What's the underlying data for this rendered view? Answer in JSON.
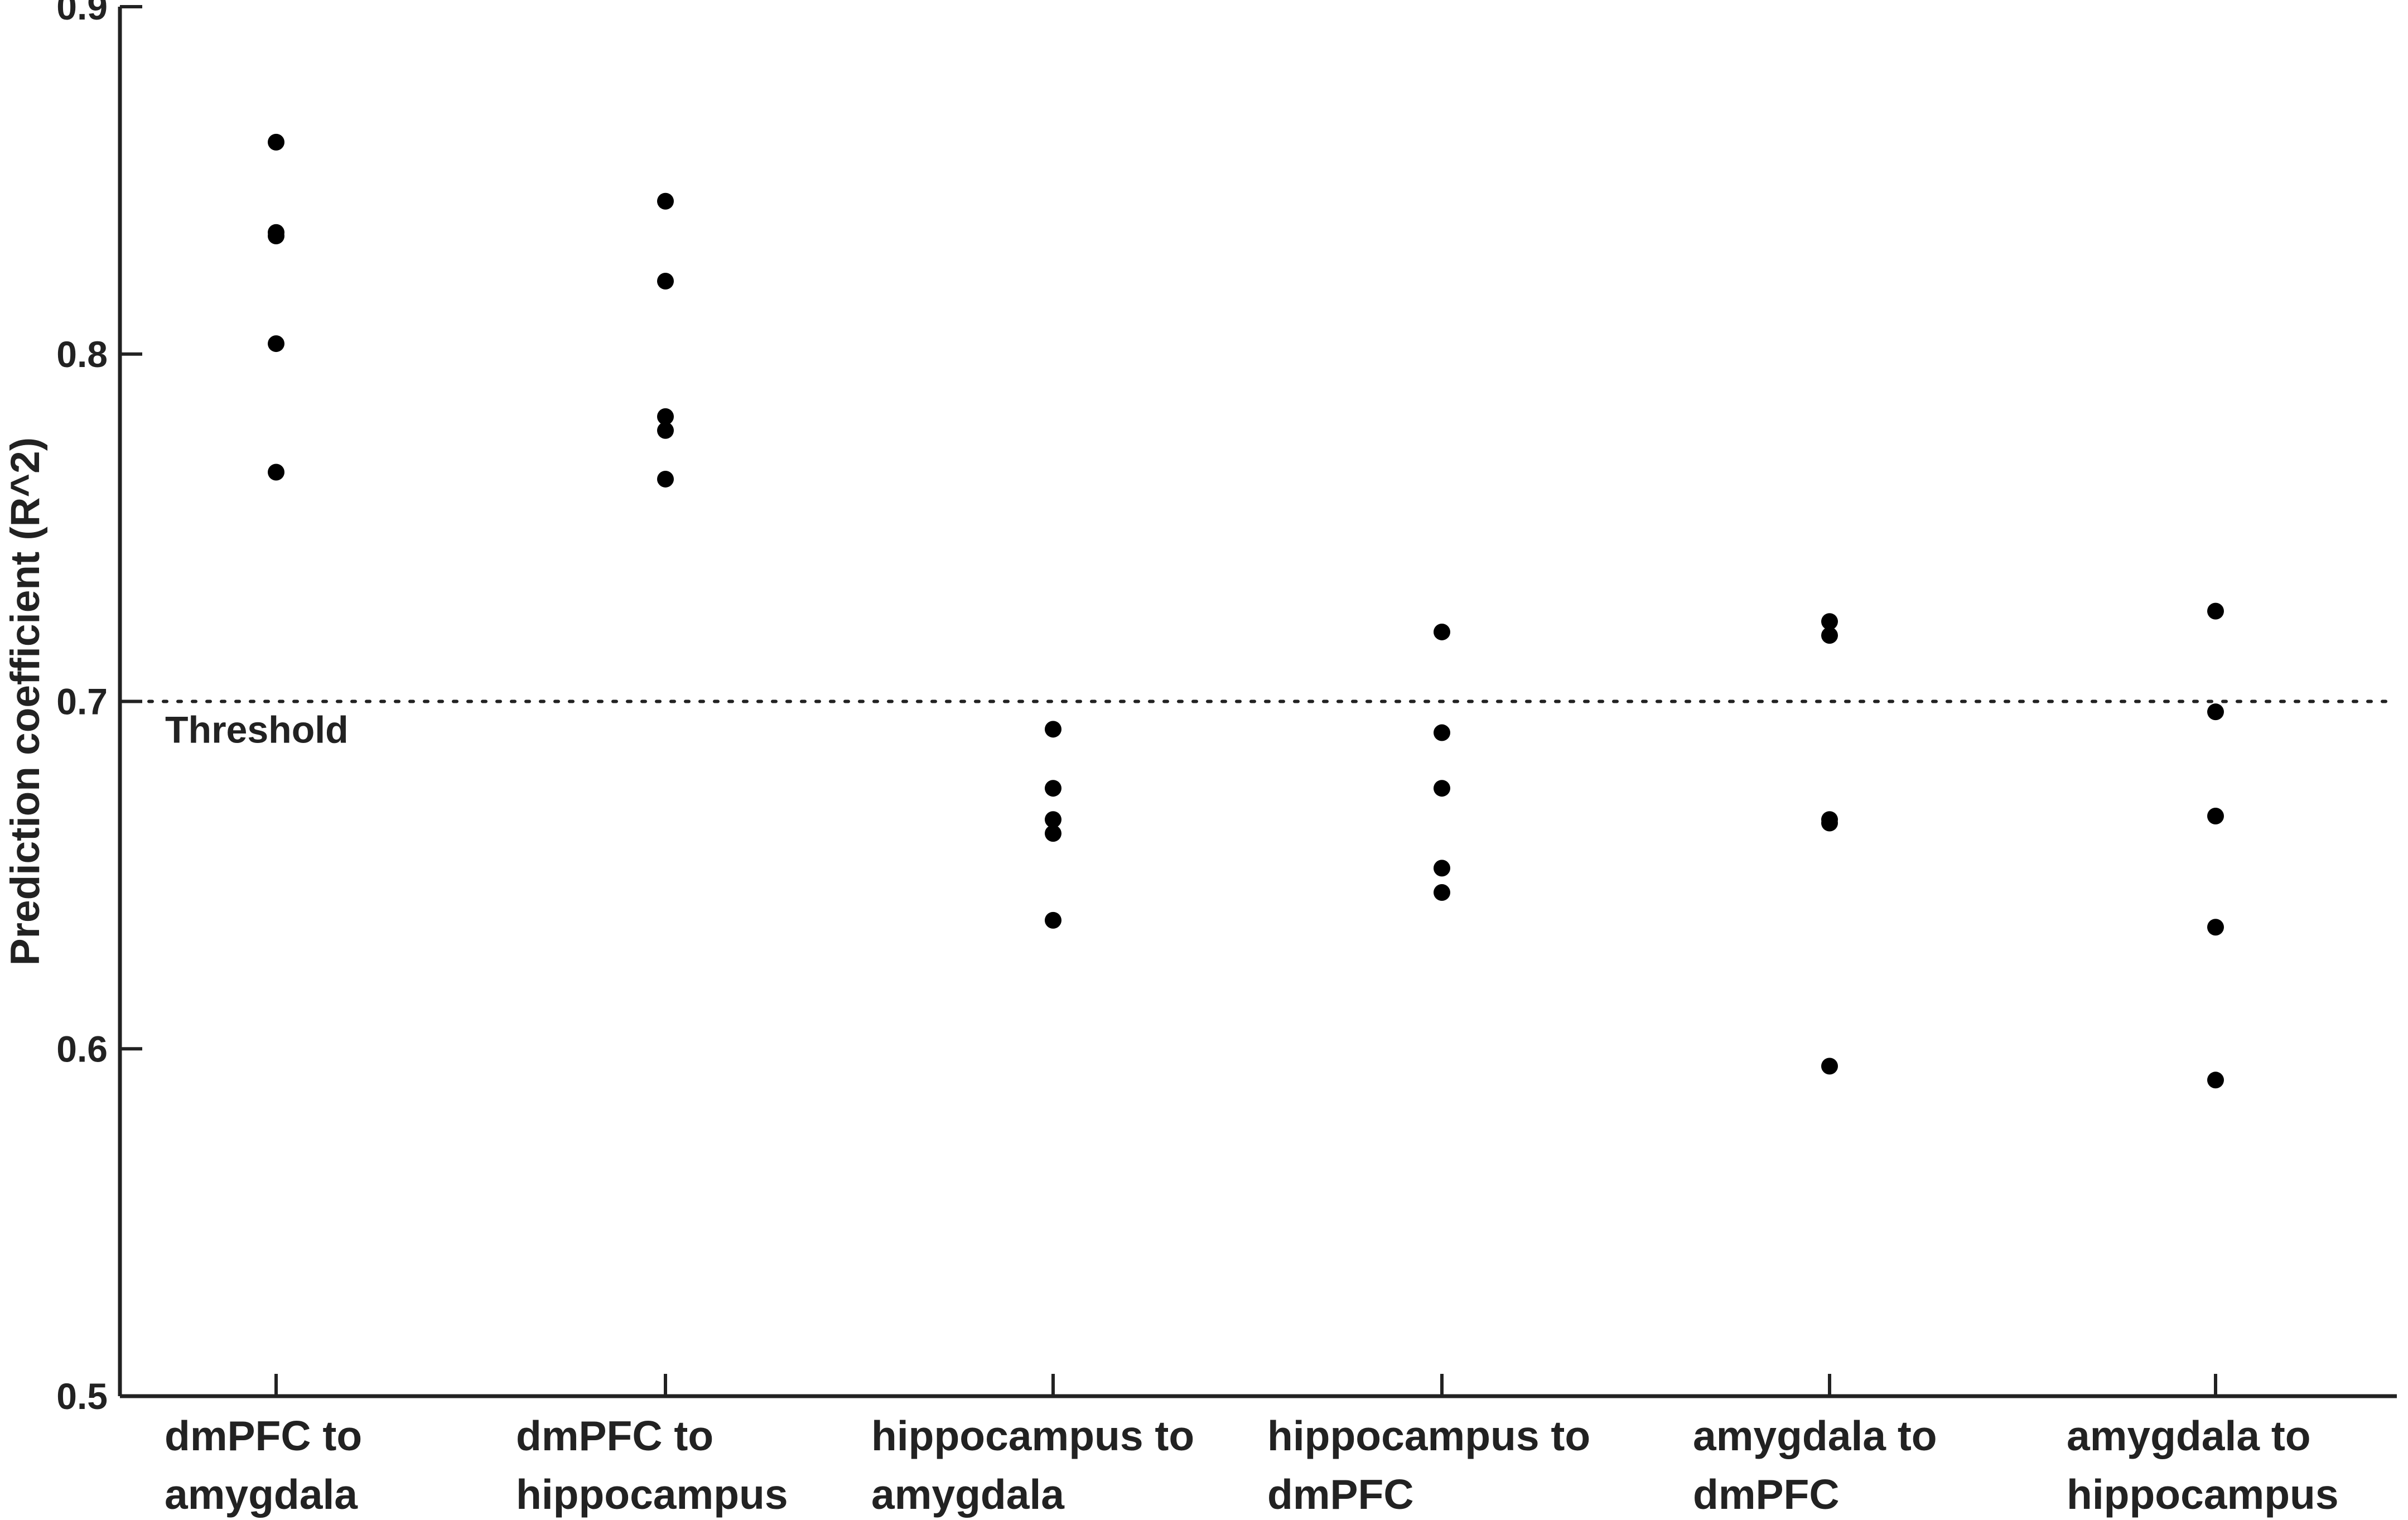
{
  "chart_data": {
    "type": "scatter",
    "ylabel": "Prediction coefficient (R^2)",
    "xlabel": "",
    "ylim": [
      0.5,
      0.9
    ],
    "yticks": [
      "0.5",
      "0.6",
      "0.7",
      "0.8",
      "0.9"
    ],
    "grid": false,
    "categories": [
      [
        "dmPFC to",
        "amygdala"
      ],
      [
        "dmPFC to",
        "hippocampus"
      ],
      [
        "hippocampus to",
        "amygdala"
      ],
      [
        "hippocampus to",
        "dmPFC"
      ],
      [
        "amygdala to",
        "dmPFC"
      ],
      [
        "amygdala to",
        "hippocampus"
      ]
    ],
    "points": [
      [
        0.861,
        0.835,
        0.834,
        0.803,
        0.766
      ],
      [
        0.844,
        0.821,
        0.782,
        0.778,
        0.764
      ],
      [
        0.692,
        0.675,
        0.666,
        0.662,
        0.637
      ],
      [
        0.72,
        0.691,
        0.675,
        0.652,
        0.645
      ],
      [
        0.723,
        0.719,
        0.666,
        0.665,
        0.595
      ],
      [
        0.726,
        0.697,
        0.667,
        0.635,
        0.591
      ]
    ],
    "reference_line": {
      "value": 0.7,
      "label": "Threshold",
      "style": "dotted"
    },
    "point_color": "#000000"
  }
}
